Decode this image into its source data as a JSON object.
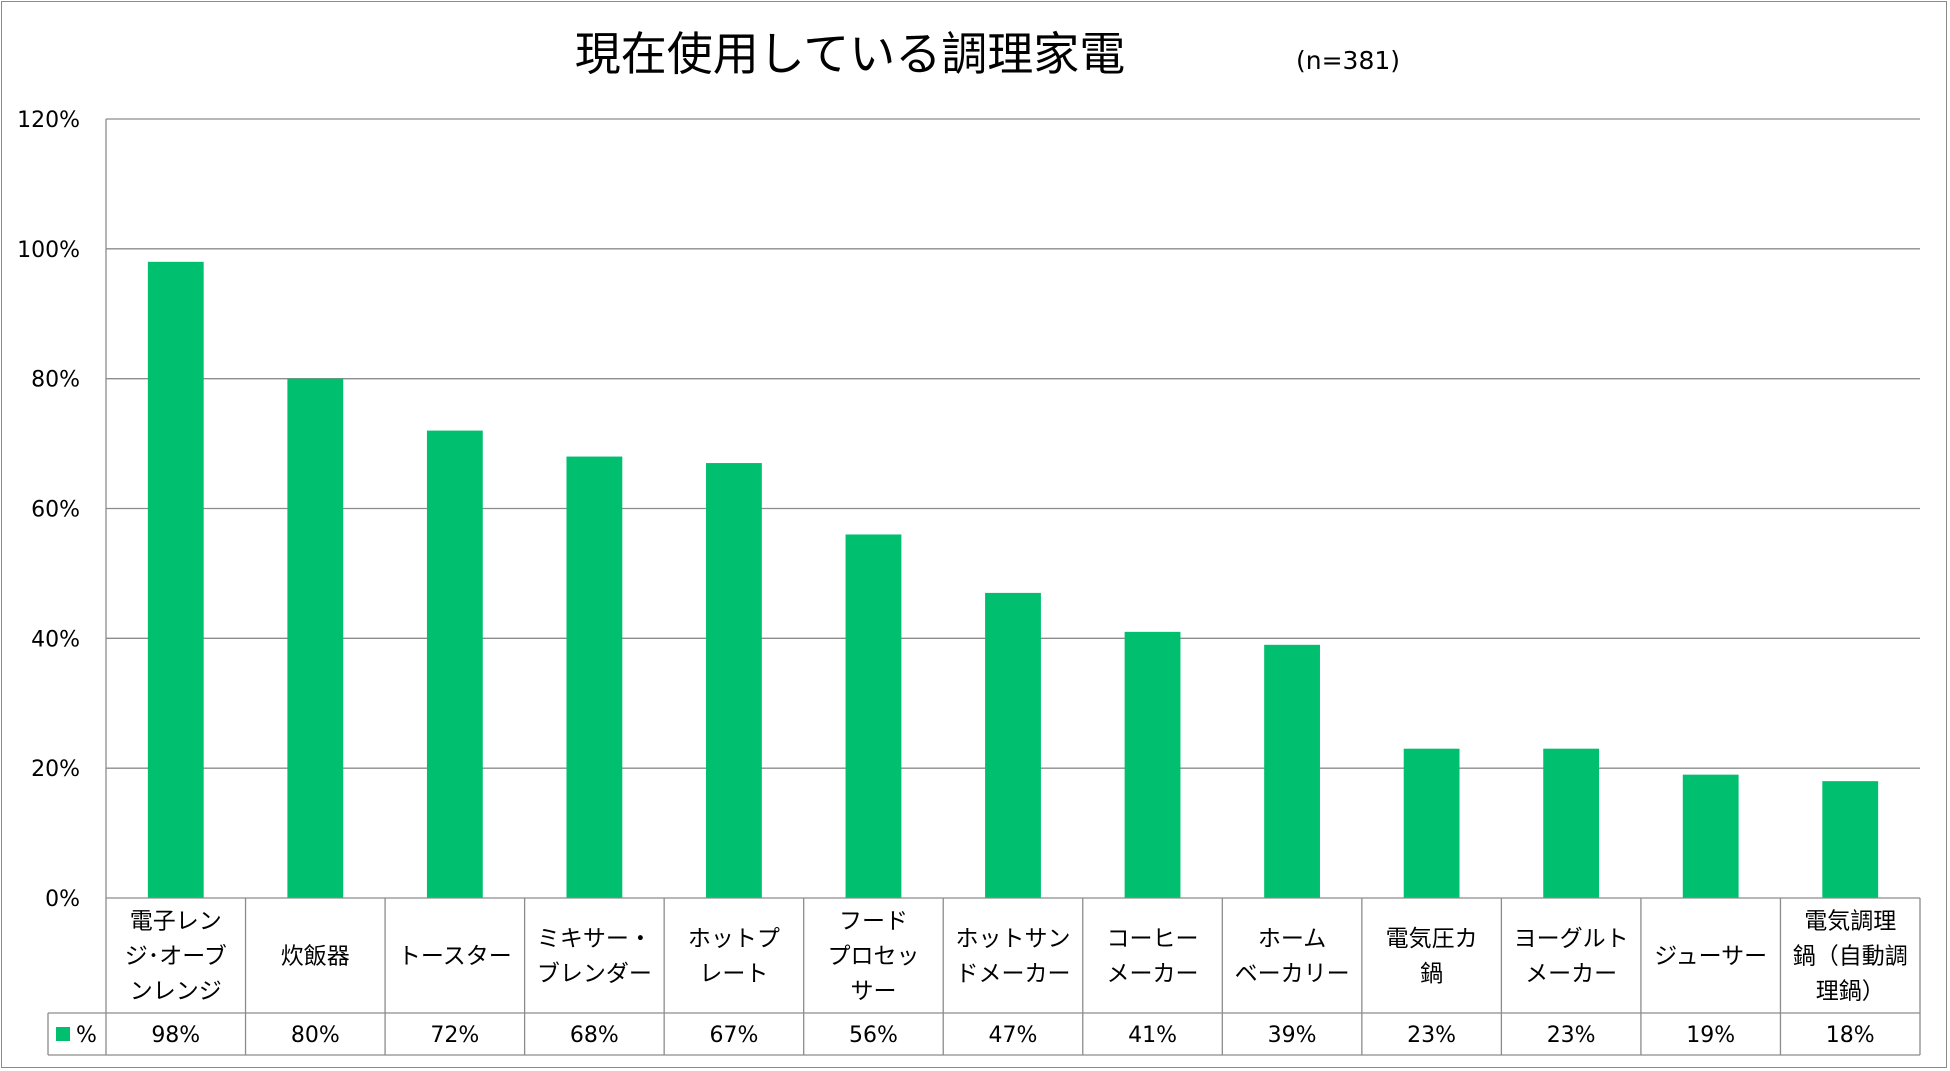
{
  "chart_data": {
    "type": "bar",
    "title": "現在使用している調理家電",
    "subtitle": "(n=381)",
    "categories": [
      [
        "電子レン",
        "ジ･オーブ",
        "ンレンジ"
      ],
      [
        "炊飯器"
      ],
      [
        "トースター"
      ],
      [
        "ミキサー・",
        "ブレンダー"
      ],
      [
        "ホットプ",
        "レート"
      ],
      [
        "フード",
        "プロセッ",
        "サー"
      ],
      [
        "ホットサン",
        "ドメーカー"
      ],
      [
        "コーヒー",
        "メーカー"
      ],
      [
        "ホーム",
        "ベーカリー"
      ],
      [
        "電気圧カ",
        "鍋"
      ],
      [
        "ヨーグルト",
        "メーカー"
      ],
      [
        "ジューサー"
      ],
      [
        "電気調理",
        "鍋（自動調",
        "理鍋）"
      ]
    ],
    "series": [
      {
        "name": "%",
        "color": "#00bf6f",
        "values": [
          98,
          80,
          72,
          68,
          67,
          56,
          47,
          41,
          39,
          23,
          23,
          19,
          18
        ],
        "labels": [
          "98%",
          "80%",
          "72%",
          "68%",
          "67%",
          "56%",
          "47%",
          "41%",
          "39%",
          "23%",
          "23%",
          "19%",
          "18%"
        ]
      }
    ],
    "ylim": [
      0,
      120
    ],
    "yticks": [
      0,
      20,
      40,
      60,
      80,
      100,
      120
    ],
    "ytick_labels": [
      "0%",
      "20%",
      "40%",
      "60%",
      "80%",
      "100%",
      "120%"
    ],
    "xlabel": "",
    "ylabel": "",
    "grid": true,
    "data_table": true
  }
}
